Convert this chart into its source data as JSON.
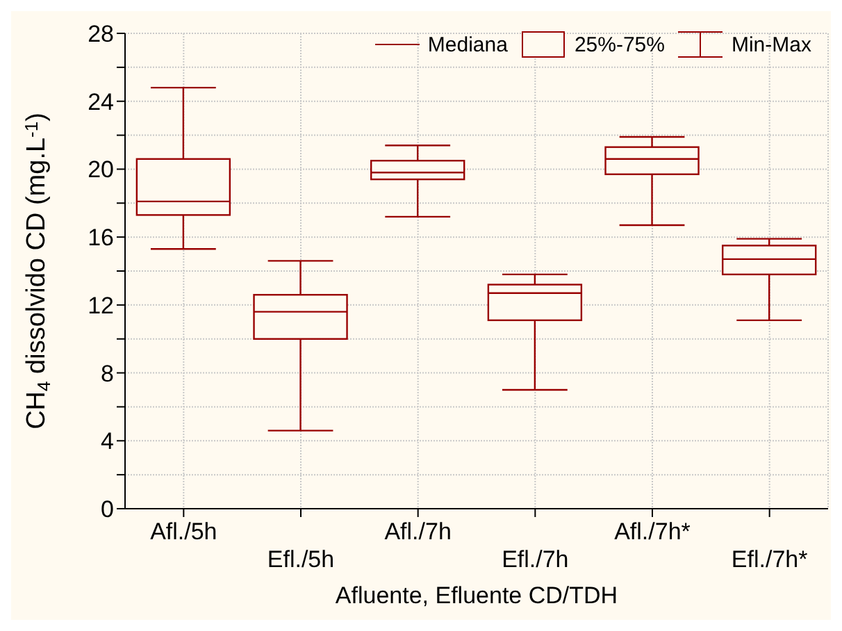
{
  "chart_data": {
    "type": "box",
    "xlabel": "Afluente, Efluente CD/TDH",
    "ylabel": "CH$_{4}$ dissolvido CD (mg.L$^{-1}$)",
    "categories": [
      "Afl./5h",
      "Efl./5h",
      "Afl./7h",
      "Efl./7h",
      "Afl./7h*",
      "Efl./7h*"
    ],
    "color": "#990000",
    "boxes": [
      {
        "low": 15.3,
        "q1": 17.3,
        "median": 18.1,
        "q3": 20.6,
        "high": 24.8
      },
      {
        "low": 4.6,
        "q1": 10.0,
        "median": 11.6,
        "q3": 12.6,
        "high": 14.6
      },
      {
        "low": 17.2,
        "q1": 19.4,
        "median": 19.8,
        "q3": 20.5,
        "high": 21.4
      },
      {
        "low": 7.0,
        "q1": 11.1,
        "median": 12.7,
        "q3": 13.2,
        "high": 13.8
      },
      {
        "low": 16.7,
        "q1": 19.7,
        "median": 20.6,
        "q3": 21.3,
        "high": 21.9
      },
      {
        "low": 11.1,
        "q1": 13.8,
        "median": 14.7,
        "q3": 15.5,
        "high": 15.9
      }
    ],
    "ylim": [
      0,
      28
    ],
    "yticks": [
      0,
      {
        "value": 2,
        "label": null
      },
      4,
      {
        "value": 6,
        "label": null
      },
      8,
      {
        "value": 10,
        "label": null
      },
      12,
      {
        "value": 14,
        "label": null
      },
      16,
      {
        "value": 18,
        "label": null
      },
      20,
      {
        "value": 22,
        "label": null
      },
      24,
      {
        "value": 26,
        "label": null
      },
      28
    ],
    "grid": true,
    "annotations": [
      "Mediana",
      "25%-75%",
      "Min-Max"
    ]
  }
}
